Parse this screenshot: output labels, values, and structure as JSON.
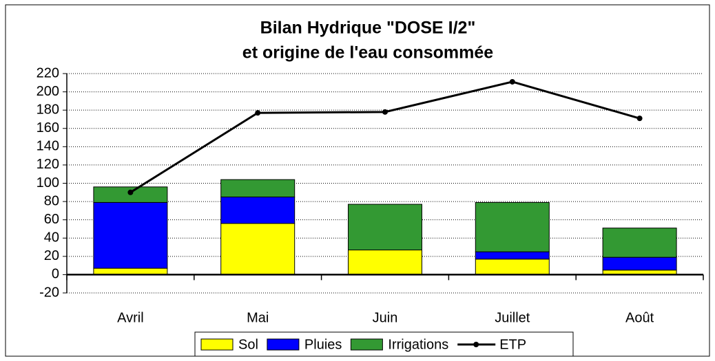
{
  "chart_data": {
    "type": "bar",
    "stacked": true,
    "title": [
      "Bilan Hydrique \"DOSE I/2\"",
      "et origine de l'eau consommée"
    ],
    "categories": [
      "Avril",
      "Mai",
      "Juin",
      "Juillet",
      "Août"
    ],
    "series": [
      {
        "name": "Sol",
        "color": "#ffff00",
        "values": [
          7,
          56,
          27,
          17,
          5
        ]
      },
      {
        "name": "Pluies",
        "color": "#0000ff",
        "values": [
          72,
          29,
          0,
          8,
          14
        ]
      },
      {
        "name": "Irrigations",
        "color": "#339933",
        "values": [
          17,
          19,
          50,
          54,
          32
        ]
      },
      {
        "name": "ETP",
        "type": "line",
        "color": "#000000",
        "values": [
          90,
          177,
          178,
          211,
          171
        ]
      }
    ],
    "ylim": [
      -20,
      220
    ],
    "yticks": [
      -20,
      0,
      20,
      40,
      60,
      80,
      100,
      120,
      140,
      160,
      180,
      200,
      220
    ],
    "grid": true,
    "legend": "bottom"
  }
}
